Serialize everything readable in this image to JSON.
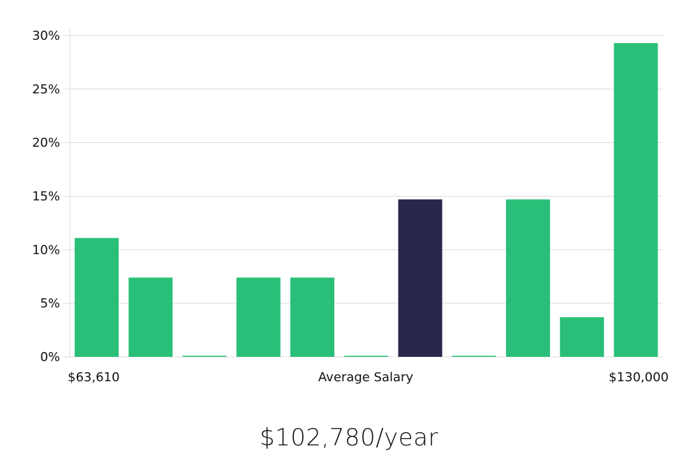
{
  "chart_data": {
    "type": "bar",
    "categories": [
      "1",
      "2",
      "3",
      "4",
      "5",
      "6",
      "7",
      "8",
      "9",
      "10",
      "11"
    ],
    "values": [
      11.1,
      7.4,
      0.1,
      7.4,
      7.4,
      0.1,
      14.7,
      0.1,
      14.7,
      3.7,
      29.3
    ],
    "highlight_index": 6,
    "ylim": [
      0,
      30
    ],
    "yticks": [
      0,
      5,
      10,
      15,
      20,
      25,
      30
    ],
    "ytick_labels": [
      "0%",
      "5%",
      "10%",
      "15%",
      "20%",
      "25%",
      "30%"
    ],
    "x_min_label": "$63,610",
    "x_center_label": "Average Salary",
    "x_max_label": "$130,000",
    "grid": true
  },
  "colors": {
    "bar": "#2abf78",
    "highlight": "#28264a",
    "grid": "#dcdcdc"
  },
  "salary_caption": "$102,780/year"
}
